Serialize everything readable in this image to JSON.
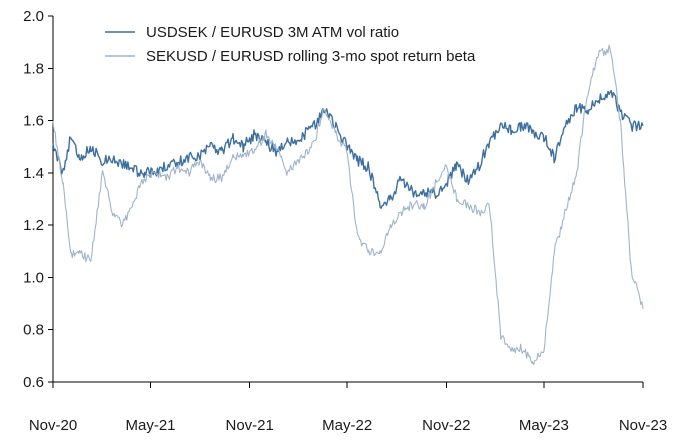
{
  "chart_data": {
    "type": "line",
    "title": "",
    "xlabel": "",
    "ylabel": "",
    "ylim": [
      0.6,
      2.0
    ],
    "yticks": [
      0.6,
      0.8,
      1.0,
      1.2,
      1.4,
      1.6,
      1.8,
      2.0
    ],
    "ytick_labels": [
      "0.6",
      "0.8",
      "1.0",
      "1.2",
      "1.4",
      "1.6",
      "1.8",
      "2.0"
    ],
    "xlim": [
      "2020-11-01",
      "2023-11-01"
    ],
    "x_ticks": [
      "2020-11-01",
      "2021-05-01",
      "2021-11-01",
      "2022-05-01",
      "2022-11-01",
      "2023-05-01",
      "2023-11-01"
    ],
    "x_tick_labels": [
      "Nov-20",
      "May-21",
      "Nov-21",
      "May-22",
      "Nov-22",
      "May-23",
      "Nov-23"
    ],
    "grid": false,
    "legend_position": "top-left",
    "series": [
      {
        "name": "USDSEK / EURUSD 3M ATM vol ratio",
        "color": "#3c6f9f",
        "x": [
          "2020-11-01",
          "2020-11-20",
          "2020-12-05",
          "2020-12-20",
          "2021-01-10",
          "2021-02-01",
          "2021-02-20",
          "2021-03-10",
          "2021-04-01",
          "2021-04-20",
          "2021-05-10",
          "2021-06-01",
          "2021-06-20",
          "2021-07-10",
          "2021-08-01",
          "2021-08-20",
          "2021-09-10",
          "2021-10-01",
          "2021-10-20",
          "2021-11-10",
          "2021-12-01",
          "2021-12-20",
          "2022-01-10",
          "2022-02-01",
          "2022-02-15",
          "2022-03-01",
          "2022-03-20",
          "2022-04-10",
          "2022-05-01",
          "2022-05-20",
          "2022-06-10",
          "2022-07-01",
          "2022-07-20",
          "2022-08-10",
          "2022-09-01",
          "2022-09-20",
          "2022-10-10",
          "2022-11-01",
          "2022-11-20",
          "2022-12-10",
          "2023-01-01",
          "2023-01-20",
          "2023-02-10",
          "2023-03-01",
          "2023-03-20",
          "2023-04-10",
          "2023-05-01",
          "2023-05-20",
          "2023-06-10",
          "2023-07-01",
          "2023-07-20",
          "2023-08-10",
          "2023-09-01",
          "2023-09-20",
          "2023-10-10",
          "2023-11-01"
        ],
        "y": [
          1.5,
          1.4,
          1.55,
          1.46,
          1.5,
          1.44,
          1.46,
          1.43,
          1.41,
          1.4,
          1.4,
          1.43,
          1.44,
          1.46,
          1.47,
          1.5,
          1.48,
          1.53,
          1.5,
          1.55,
          1.52,
          1.48,
          1.52,
          1.52,
          1.56,
          1.58,
          1.65,
          1.58,
          1.5,
          1.45,
          1.42,
          1.28,
          1.3,
          1.38,
          1.32,
          1.33,
          1.32,
          1.36,
          1.43,
          1.37,
          1.43,
          1.52,
          1.58,
          1.56,
          1.58,
          1.56,
          1.54,
          1.46,
          1.58,
          1.65,
          1.63,
          1.68,
          1.72,
          1.63,
          1.58,
          1.58
        ]
      },
      {
        "name": "SEKUSD / EURUSD rolling 3-mo spot return beta",
        "color": "#9fb4cb",
        "x": [
          "2020-11-01",
          "2020-11-20",
          "2020-12-05",
          "2020-12-20",
          "2021-01-10",
          "2021-02-01",
          "2021-02-20",
          "2021-03-10",
          "2021-04-01",
          "2021-04-20",
          "2021-05-10",
          "2021-06-01",
          "2021-06-20",
          "2021-07-10",
          "2021-08-01",
          "2021-08-20",
          "2021-09-10",
          "2021-10-01",
          "2021-10-20",
          "2021-11-10",
          "2021-12-01",
          "2021-12-20",
          "2022-01-10",
          "2022-02-01",
          "2022-02-15",
          "2022-03-01",
          "2022-03-20",
          "2022-04-10",
          "2022-05-01",
          "2022-05-20",
          "2022-06-10",
          "2022-07-01",
          "2022-07-20",
          "2022-08-10",
          "2022-09-01",
          "2022-09-20",
          "2022-10-10",
          "2022-11-01",
          "2022-11-20",
          "2022-12-10",
          "2023-01-01",
          "2023-01-20",
          "2023-02-10",
          "2023-03-01",
          "2023-03-20",
          "2023-04-10",
          "2023-05-01",
          "2023-05-20",
          "2023-06-10",
          "2023-07-01",
          "2023-07-20",
          "2023-08-10",
          "2023-09-01",
          "2023-09-20",
          "2023-10-10",
          "2023-11-01"
        ],
        "y": [
          1.6,
          1.35,
          1.08,
          1.1,
          1.06,
          1.4,
          1.25,
          1.2,
          1.3,
          1.38,
          1.4,
          1.38,
          1.42,
          1.4,
          1.45,
          1.38,
          1.38,
          1.46,
          1.47,
          1.48,
          1.55,
          1.5,
          1.4,
          1.45,
          1.48,
          1.52,
          1.65,
          1.55,
          1.48,
          1.15,
          1.1,
          1.1,
          1.2,
          1.25,
          1.28,
          1.27,
          1.35,
          1.42,
          1.3,
          1.28,
          1.25,
          1.28,
          0.78,
          0.72,
          0.73,
          0.67,
          0.72,
          1.1,
          1.25,
          1.4,
          1.7,
          1.85,
          1.88,
          1.6,
          1.03,
          0.88
        ]
      }
    ]
  }
}
